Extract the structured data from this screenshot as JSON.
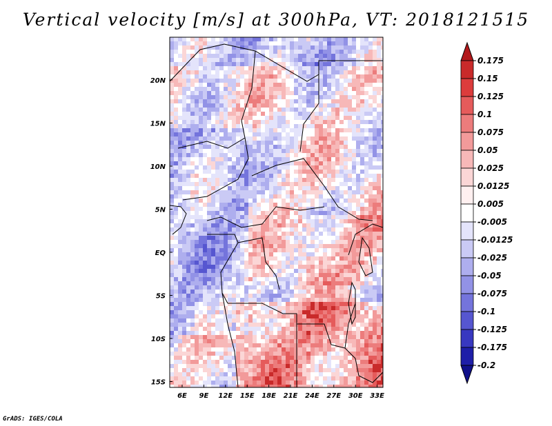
{
  "title": "Vertical velocity [m/s] at 300hPa, VT: 2018121515",
  "credit": "GrADS: IGES/COLA",
  "map": {
    "x_ticks": [
      "6E",
      "9E",
      "12E",
      "15E",
      "18E",
      "21E",
      "24E",
      "27E",
      "30E",
      "33E"
    ],
    "y_ticks": [
      "20N",
      "15N",
      "10N",
      "5N",
      "EQ",
      "5S",
      "10S",
      "15S"
    ]
  },
  "colorbar": {
    "labels": [
      "0.175",
      "0.15",
      "0.125",
      "0.1",
      "0.075",
      "0.05",
      "0.025",
      "0.0125",
      "0.005",
      "-0.005",
      "-0.0125",
      "-0.025",
      "-0.05",
      "-0.075",
      "-0.1",
      "-0.125",
      "-0.175",
      "-0.2"
    ],
    "colors": [
      "#b2181b",
      "#c92a2a",
      "#dc3c3c",
      "#e55b5b",
      "#ec7c7c",
      "#f29a9a",
      "#f7b8b8",
      "#fbd6d6",
      "#fff0f0",
      "#ffffff",
      "#e4e4fb",
      "#cacaf5",
      "#aeaeee",
      "#9292e6",
      "#7474dc",
      "#5656d0",
      "#3838c0",
      "#1e1ea8",
      "#10108a"
    ]
  }
}
